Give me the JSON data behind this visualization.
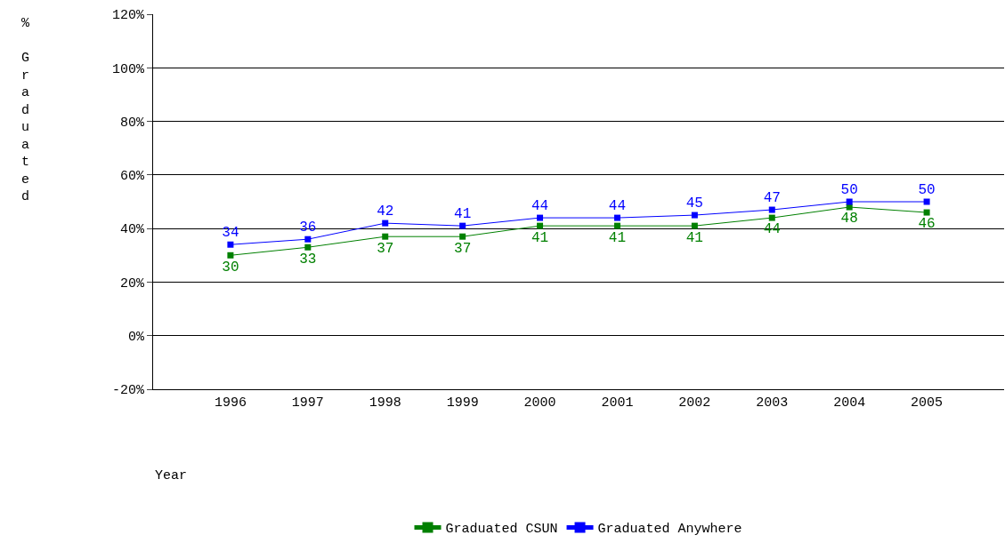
{
  "chart_data": {
    "type": "line",
    "xlabel": "Year",
    "ylabel": "% Graduated",
    "categories": [
      "1996",
      "1997",
      "1998",
      "1999",
      "2000",
      "2001",
      "2002",
      "2003",
      "2004",
      "2005"
    ],
    "series": [
      {
        "name": "Graduated CSUN",
        "color": "#008000",
        "values": [
          30,
          33,
          37,
          37,
          41,
          41,
          41,
          44,
          48,
          46
        ]
      },
      {
        "name": "Graduated Anywhere",
        "color": "#0000ff",
        "values": [
          34,
          36,
          42,
          41,
          44,
          44,
          45,
          47,
          50,
          50
        ]
      }
    ],
    "ylim": [
      -20,
      120
    ],
    "yticks": [
      {
        "value": -20,
        "label": "-20%"
      },
      {
        "value": 0,
        "label": "0%"
      },
      {
        "value": 20,
        "label": "20%"
      },
      {
        "value": 40,
        "label": "40%"
      },
      {
        "value": 60,
        "label": "60%"
      },
      {
        "value": 80,
        "label": "80%"
      },
      {
        "value": 100,
        "label": "100%"
      },
      {
        "value": 120,
        "label": "120%"
      }
    ],
    "grid": "y",
    "legend": "bottom",
    "marker": "square",
    "line_style": "solid",
    "data_labels": true
  }
}
